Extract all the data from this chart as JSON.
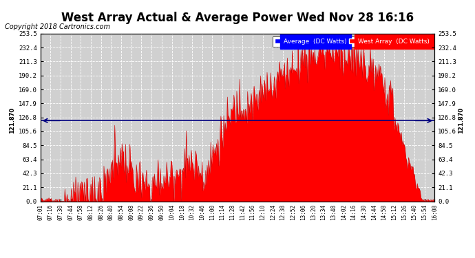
{
  "title": "West Array Actual & Average Power Wed Nov 28 16:16",
  "copyright": "Copyright 2018 Cartronics.com",
  "legend_labels": [
    "Average  (DC Watts)",
    "West Array  (DC Watts)"
  ],
  "legend_colors": [
    "#0000ff",
    "#ff0000"
  ],
  "avg_line_value": 121.87,
  "avg_label": "121.870",
  "ymax": 253.5,
  "ymin": 0.0,
  "yticks": [
    0.0,
    21.1,
    42.3,
    63.4,
    84.5,
    105.6,
    126.8,
    147.9,
    169.0,
    190.2,
    211.3,
    232.4,
    253.5
  ],
  "background_color": "#d0d0d0",
  "fill_color": "#ff0000",
  "avg_line_color": "#000080",
  "title_fontsize": 12,
  "copyright_fontsize": 7,
  "tick_labels": [
    "07:01",
    "07:16",
    "07:30",
    "07:44",
    "07:58",
    "08:12",
    "08:26",
    "08:40",
    "08:54",
    "09:08",
    "09:22",
    "09:36",
    "09:50",
    "10:04",
    "10:18",
    "10:32",
    "10:46",
    "11:00",
    "11:14",
    "11:28",
    "11:42",
    "11:56",
    "12:10",
    "12:24",
    "12:38",
    "12:52",
    "13:06",
    "13:20",
    "13:34",
    "13:48",
    "14:02",
    "14:16",
    "14:30",
    "14:44",
    "14:58",
    "15:12",
    "15:26",
    "15:40",
    "15:54",
    "16:08"
  ]
}
